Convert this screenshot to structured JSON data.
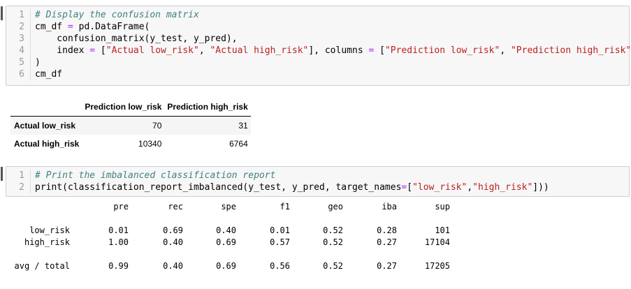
{
  "cell1": {
    "lines": [
      {
        "num": "1",
        "tokens": [
          {
            "t": "# Display the confusion matrix",
            "c": "comment"
          }
        ]
      },
      {
        "num": "2",
        "tokens": [
          {
            "t": "cm_df ",
            "c": "var"
          },
          {
            "t": "=",
            "c": "op"
          },
          {
            "t": " pd.DataFrame(",
            "c": "var"
          }
        ]
      },
      {
        "num": "3",
        "tokens": [
          {
            "t": "    confusion_matrix(y_test, y_pred),",
            "c": "var"
          }
        ]
      },
      {
        "num": "4",
        "tokens": [
          {
            "t": "    index ",
            "c": "var"
          },
          {
            "t": "=",
            "c": "op"
          },
          {
            "t": " [",
            "c": "var"
          },
          {
            "t": "\"Actual low_risk\"",
            "c": "str"
          },
          {
            "t": ", ",
            "c": "var"
          },
          {
            "t": "\"Actual high_risk\"",
            "c": "str"
          },
          {
            "t": "], columns ",
            "c": "var"
          },
          {
            "t": "=",
            "c": "op"
          },
          {
            "t": " [",
            "c": "var"
          },
          {
            "t": "\"Prediction low_risk\"",
            "c": "str"
          },
          {
            "t": ", ",
            "c": "var"
          },
          {
            "t": "\"Prediction high_risk\"",
            "c": "str"
          },
          {
            "t": "]",
            "c": "var"
          }
        ]
      },
      {
        "num": "5",
        "tokens": [
          {
            "t": ")",
            "c": "var"
          }
        ]
      },
      {
        "num": "6",
        "tokens": [
          {
            "t": "cm_df",
            "c": "var"
          }
        ]
      }
    ]
  },
  "dataframe": {
    "columns": [
      "Prediction low_risk",
      "Prediction high_risk"
    ],
    "rows": [
      {
        "label": "Actual low_risk",
        "values": [
          "70",
          "31"
        ]
      },
      {
        "label": "Actual high_risk",
        "values": [
          "10340",
          "6764"
        ]
      }
    ]
  },
  "cell2": {
    "lines": [
      {
        "num": "1",
        "tokens": [
          {
            "t": "# Print the imbalanced classification report",
            "c": "comment"
          }
        ]
      },
      {
        "num": "2",
        "tokens": [
          {
            "t": "print",
            "c": "var"
          },
          {
            "t": "(classification_report_imbalanced(y_test, y_pred, target_names",
            "c": "var"
          },
          {
            "t": "=",
            "c": "op"
          },
          {
            "t": "[",
            "c": "var"
          },
          {
            "t": "\"low_risk\"",
            "c": "str"
          },
          {
            "t": ",",
            "c": "var"
          },
          {
            "t": "\"high_risk\"",
            "c": "str"
          },
          {
            "t": "]))",
            "c": "var"
          }
        ]
      }
    ]
  },
  "report": {
    "headers": [
      "",
      "pre",
      "rec",
      "spe",
      "f1",
      "geo",
      "iba",
      "sup"
    ],
    "rows": [
      [
        "low_risk",
        "0.01",
        "0.69",
        "0.40",
        "0.01",
        "0.52",
        "0.28",
        "101"
      ],
      [
        "high_risk",
        "1.00",
        "0.40",
        "0.69",
        "0.57",
        "0.52",
        "0.27",
        "17104"
      ],
      [
        "avg / total",
        "0.99",
        "0.40",
        "0.69",
        "0.56",
        "0.52",
        "0.27",
        "17205"
      ]
    ]
  }
}
